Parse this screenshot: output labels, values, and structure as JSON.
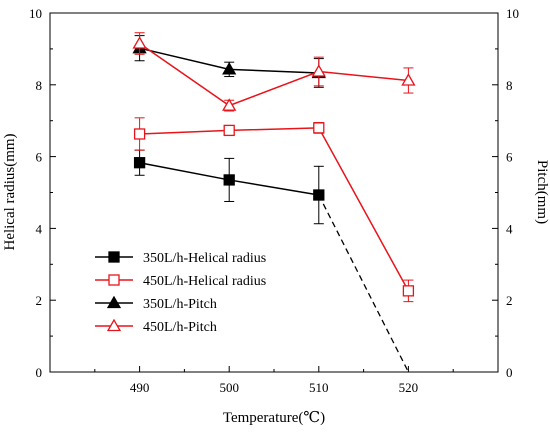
{
  "chart_data": {
    "type": "line",
    "xlabel": "Temperature(℃)",
    "ylabel_left": "Helical radius(mm)",
    "ylabel_right": "Pitch(mm)",
    "xlim": [
      480,
      530
    ],
    "ylim_left": [
      0,
      10
    ],
    "ylim_right": [
      0,
      10
    ],
    "xticks": [
      490,
      500,
      510,
      520
    ],
    "yticks": [
      0,
      2,
      4,
      6,
      8,
      10
    ],
    "grid": false,
    "legend_position": "bottom-left",
    "series": [
      {
        "name": "350L/h-Helical radius",
        "axis": "left",
        "color": "#000000",
        "marker": "filled-square",
        "x": [
          490,
          500,
          510
        ],
        "y": [
          5.83,
          5.35,
          4.93
        ],
        "err": [
          0.35,
          0.6,
          0.8
        ],
        "extrapolation": {
          "x": [
            510,
            520
          ],
          "y": [
            4.93,
            0
          ],
          "style": "dashed"
        }
      },
      {
        "name": "450L/h-Helical radius",
        "axis": "left",
        "color": "#e8141b",
        "marker": "open-square",
        "x": [
          490,
          500,
          510,
          520
        ],
        "y": [
          6.63,
          6.73,
          6.8,
          2.26
        ],
        "err": [
          0.45,
          0.12,
          0.15,
          0.3
        ]
      },
      {
        "name": "350L/h-Pitch",
        "axis": "right",
        "color": "#000000",
        "marker": "filled-triangle",
        "x": [
          490,
          500,
          510
        ],
        "y": [
          9.02,
          8.43,
          8.33
        ],
        "err": [
          0.35,
          0.2,
          0.4
        ]
      },
      {
        "name": "450L/h-Pitch",
        "axis": "right",
        "color": "#e8141b",
        "marker": "open-triangle",
        "x": [
          490,
          500,
          510,
          520
        ],
        "y": [
          9.15,
          7.42,
          8.37,
          8.12
        ],
        "err": [
          0.3,
          0.15,
          0.4,
          0.35
        ]
      }
    ]
  }
}
